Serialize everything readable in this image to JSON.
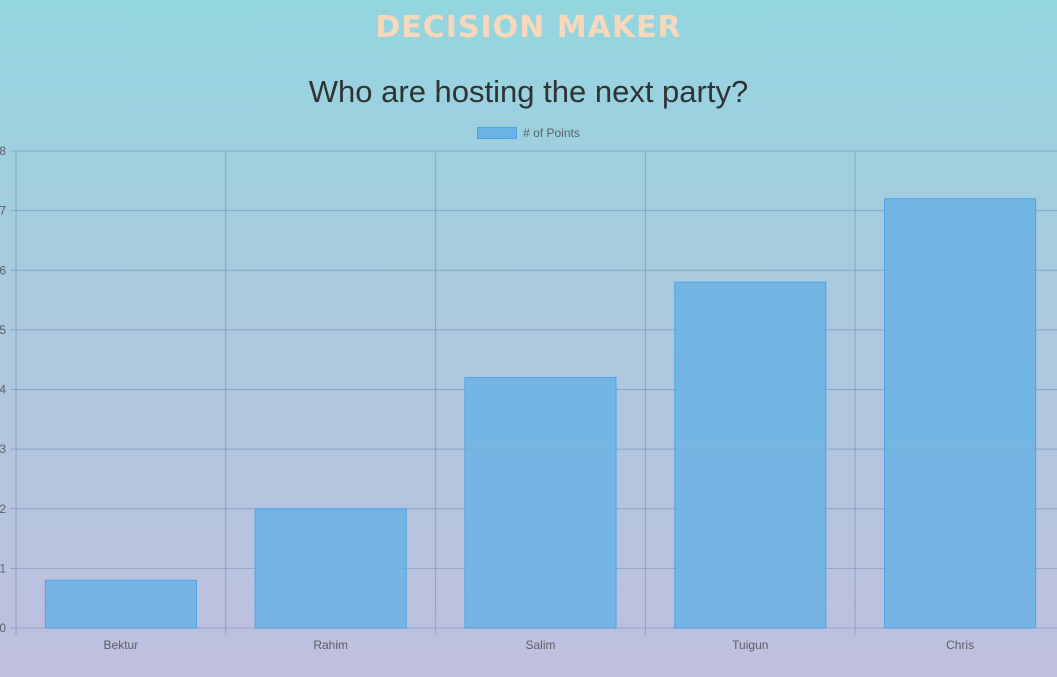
{
  "app": {
    "title": "Decision Maker"
  },
  "chart_data": {
    "type": "bar",
    "title": "Who are hosting the next party?",
    "categories": [
      "Bektur",
      "Rahim",
      "Salim",
      "Tuigun",
      "Chris"
    ],
    "series": [
      {
        "name": "# of Points",
        "values": [
          0.8,
          2,
          4.2,
          5.8,
          7.2
        ]
      }
    ],
    "ylim": [
      0,
      8
    ],
    "grid": true,
    "legend_position": "top-center",
    "bar_color": "#6ab3e4",
    "bar_border_color": "#4aa3e8"
  }
}
